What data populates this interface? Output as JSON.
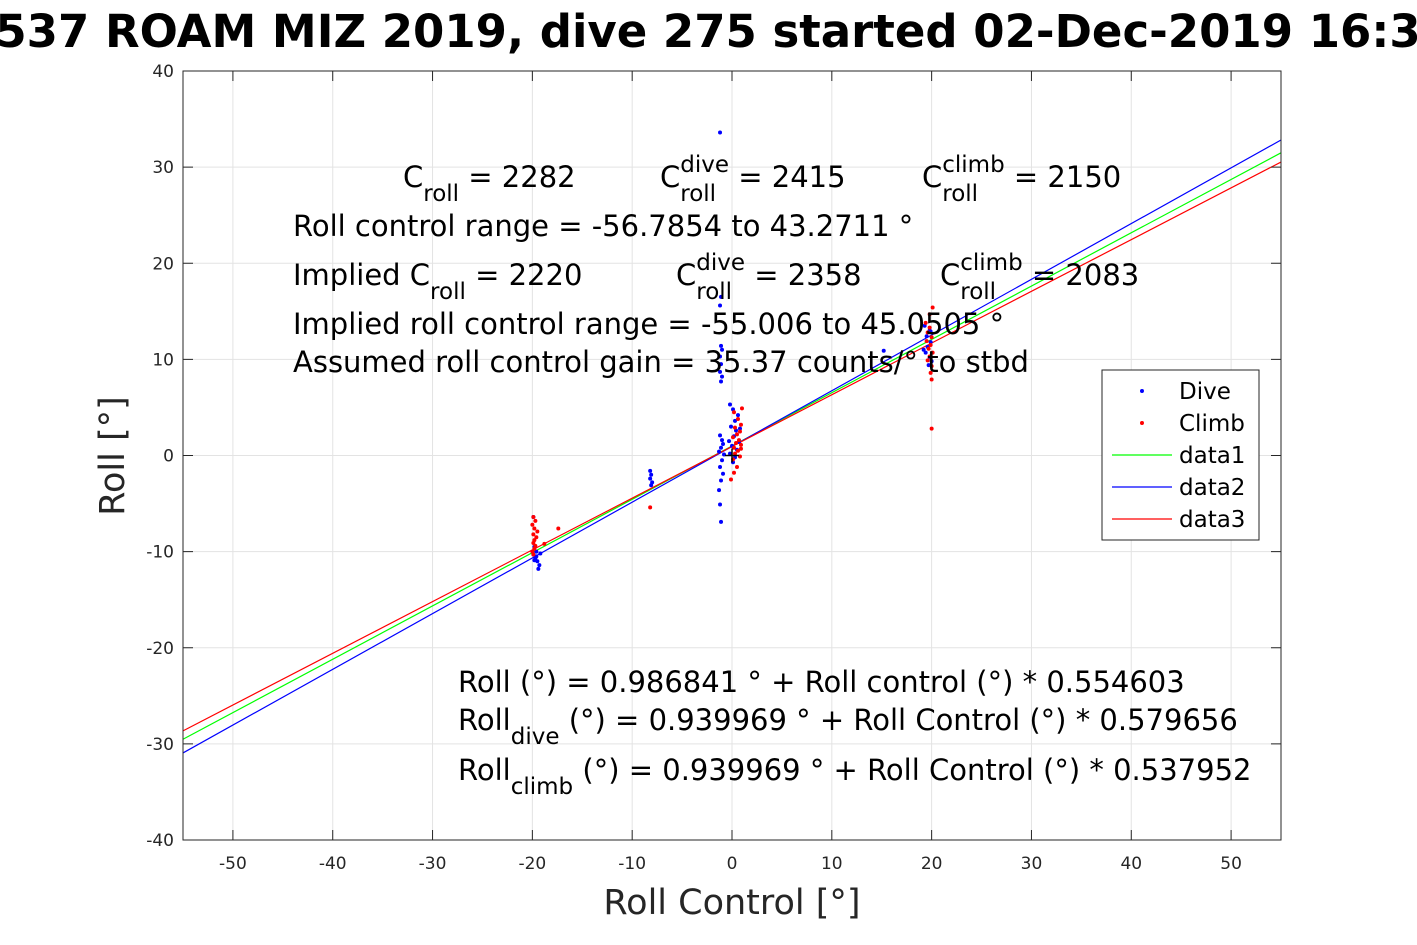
{
  "chart_data": {
    "type": "scatter",
    "title": "537 ROAM MIZ 2019, dive 275 started 02-Dec-2019 16:3",
    "xlabel": "Roll Control [°]",
    "ylabel": "Roll [°]",
    "xlim": [
      -55,
      55
    ],
    "ylim": [
      -40,
      40
    ],
    "xticks": [
      -50,
      -40,
      -30,
      -20,
      -10,
      0,
      10,
      20,
      30,
      40,
      50
    ],
    "yticks": [
      -40,
      -30,
      -20,
      -10,
      0,
      10,
      20,
      30,
      40
    ],
    "grid": true,
    "legend_position": "right-middle",
    "annotations": [
      {
        "id": "c_roll",
        "base": "C",
        "sub": "roll",
        "rest": " = 2282"
      },
      {
        "id": "c_roll_dive",
        "base": "C",
        "sub": "roll",
        "sup": "dive",
        "rest": " = 2415"
      },
      {
        "id": "c_roll_climb",
        "base": "C",
        "sub": "roll",
        "sup": "climb",
        "rest": " = 2150"
      },
      {
        "id": "range",
        "text": "Roll control range = -56.7854 to 43.2711 °"
      },
      {
        "id": "implied_c_roll",
        "base": "Implied C",
        "sub": "roll",
        "rest": " = 2220"
      },
      {
        "id": "implied_c_roll_dive",
        "base": "C",
        "sub": "roll",
        "sup": "dive",
        "rest": " = 2358"
      },
      {
        "id": "implied_c_roll_climb",
        "base": "C",
        "sub": "roll",
        "sup": "climb",
        "rest": " = 2083"
      },
      {
        "id": "implied_range",
        "text": "Implied roll control range = -55.006 to 45.0505 °"
      },
      {
        "id": "gain",
        "text": "Assumed roll control gain = 35.37 counts/° to stbd"
      },
      {
        "id": "fit_all",
        "text": "Roll (°) = 0.986841 ° + Roll control (°) * 0.554603"
      },
      {
        "id": "fit_dive",
        "base": "Roll",
        "sub": "dive",
        "rest": " (°) = 0.939969 ° + Roll Control (°) * 0.579656"
      },
      {
        "id": "fit_climb",
        "base": "Roll",
        "sub": "climb",
        "rest": " (°) = 0.939969 ° + Roll Control (°) * 0.537952"
      }
    ],
    "series": [
      {
        "name": "Dive",
        "style": "points",
        "color": "#0000ff",
        "points": [
          [
            -1.2,
            33.6
          ],
          [
            -1.1,
            16.5
          ],
          [
            -1.2,
            15.6
          ],
          [
            -1.1,
            11.4
          ],
          [
            -1.0,
            11.0
          ],
          [
            -1.2,
            10.3
          ],
          [
            -1.1,
            9.5
          ],
          [
            -1.2,
            8.7
          ],
          [
            -1.0,
            8.2
          ],
          [
            -1.1,
            7.7
          ],
          [
            -1.2,
            2.1
          ],
          [
            -1.0,
            1.6
          ],
          [
            -0.9,
            1.2
          ],
          [
            -1.1,
            0.8
          ],
          [
            -1.3,
            0.4
          ],
          [
            -0.8,
            0.1
          ],
          [
            -1.0,
            -0.5
          ],
          [
            -1.2,
            -1.2
          ],
          [
            -0.9,
            -1.9
          ],
          [
            -1.1,
            -2.6
          ],
          [
            -1.3,
            -3.6
          ],
          [
            -1.2,
            -5.1
          ],
          [
            -1.1,
            -6.9
          ],
          [
            -0.2,
            5.3
          ],
          [
            0.1,
            4.8
          ],
          [
            0.3,
            3.6
          ],
          [
            -0.1,
            3.0
          ],
          [
            0.4,
            2.6
          ],
          [
            0.2,
            2.0
          ],
          [
            -0.3,
            1.5
          ],
          [
            0.0,
            1.0
          ],
          [
            0.5,
            0.6
          ],
          [
            -0.2,
            0.2
          ],
          [
            0.3,
            -0.2
          ],
          [
            0.1,
            -0.7
          ],
          [
            0.6,
            4.2
          ],
          [
            0.8,
            2.8
          ],
          [
            0.7,
            1.4
          ],
          [
            -8.2,
            -1.6
          ],
          [
            -8.1,
            -2.0
          ],
          [
            -8.2,
            -2.4
          ],
          [
            -8.0,
            -2.8
          ],
          [
            -8.1,
            -3.1
          ],
          [
            -19.8,
            -9.5
          ],
          [
            -19.6,
            -10.0
          ],
          [
            -19.9,
            -10.3
          ],
          [
            -19.7,
            -10.7
          ],
          [
            -19.5,
            -11.0
          ],
          [
            -19.3,
            -11.4
          ],
          [
            -19.8,
            -10.9
          ],
          [
            -19.4,
            -11.8
          ],
          [
            -19.6,
            -10.5
          ],
          [
            -19.2,
            -10.2
          ],
          [
            -19.9,
            -6.4
          ],
          [
            15.2,
            10.9
          ],
          [
            19.3,
            13.5
          ],
          [
            19.8,
            13.0
          ],
          [
            19.5,
            12.4
          ],
          [
            19.9,
            11.8
          ],
          [
            19.6,
            11.3
          ],
          [
            19.4,
            10.7
          ],
          [
            19.8,
            10.2
          ],
          [
            20.0,
            9.8
          ],
          [
            19.7,
            9.4
          ],
          [
            19.2,
            11.0
          ],
          [
            19.9,
            12.9
          ]
        ]
      },
      {
        "name": "Climb",
        "style": "points",
        "color": "#ff0000",
        "points": [
          [
            -19.9,
            -6.4
          ],
          [
            -19.7,
            -6.8
          ],
          [
            -20.0,
            -7.2
          ],
          [
            -19.8,
            -7.6
          ],
          [
            -19.5,
            -7.9
          ],
          [
            -19.9,
            -8.2
          ],
          [
            -19.6,
            -8.5
          ],
          [
            -19.8,
            -8.8
          ],
          [
            -19.9,
            -9.1
          ],
          [
            -19.7,
            -9.4
          ],
          [
            -19.8,
            -9.7
          ],
          [
            -20.0,
            -10.0
          ],
          [
            -19.9,
            -10.3
          ],
          [
            -18.8,
            -9.2
          ],
          [
            -17.4,
            -7.6
          ],
          [
            -8.2,
            -5.4
          ],
          [
            0.2,
            4.5
          ],
          [
            0.6,
            3.8
          ],
          [
            0.9,
            3.2
          ],
          [
            0.3,
            2.9
          ],
          [
            0.8,
            2.5
          ],
          [
            0.5,
            2.2
          ],
          [
            0.1,
            1.9
          ],
          [
            0.7,
            1.6
          ],
          [
            0.4,
            1.3
          ],
          [
            0.9,
            1.1
          ],
          [
            0.2,
            0.8
          ],
          [
            0.6,
            0.5
          ],
          [
            0.3,
            0.2
          ],
          [
            0.8,
            -0.1
          ],
          [
            0.1,
            -0.4
          ],
          [
            0.5,
            -1.2
          ],
          [
            0.2,
            -1.8
          ],
          [
            -0.1,
            -2.5
          ],
          [
            0.9,
            0.7
          ],
          [
            1.0,
            4.9
          ],
          [
            19.4,
            13.8
          ],
          [
            19.8,
            13.3
          ],
          [
            19.6,
            12.8
          ],
          [
            20.0,
            12.3
          ],
          [
            19.5,
            11.9
          ],
          [
            19.9,
            11.5
          ],
          [
            19.7,
            11.1
          ],
          [
            20.1,
            10.7
          ],
          [
            19.8,
            10.3
          ],
          [
            19.6,
            9.9
          ],
          [
            20.0,
            9.3
          ],
          [
            19.9,
            8.6
          ],
          [
            20.0,
            7.9
          ],
          [
            20.1,
            15.4
          ],
          [
            20.0,
            2.8
          ],
          [
            19.8,
            14.7
          ]
        ]
      },
      {
        "name": "data1",
        "style": "line",
        "color": "#00ff00",
        "intercept": 0.986841,
        "slope": 0.554603
      },
      {
        "name": "data2",
        "style": "line",
        "color": "#0000ff",
        "intercept": 0.939969,
        "slope": 0.579656
      },
      {
        "name": "data3",
        "style": "line",
        "color": "#ff0000",
        "intercept": 0.939969,
        "slope": 0.537952
      }
    ],
    "origin_marker": {
      "x": 0,
      "y": 0,
      "color": "#000000"
    }
  }
}
